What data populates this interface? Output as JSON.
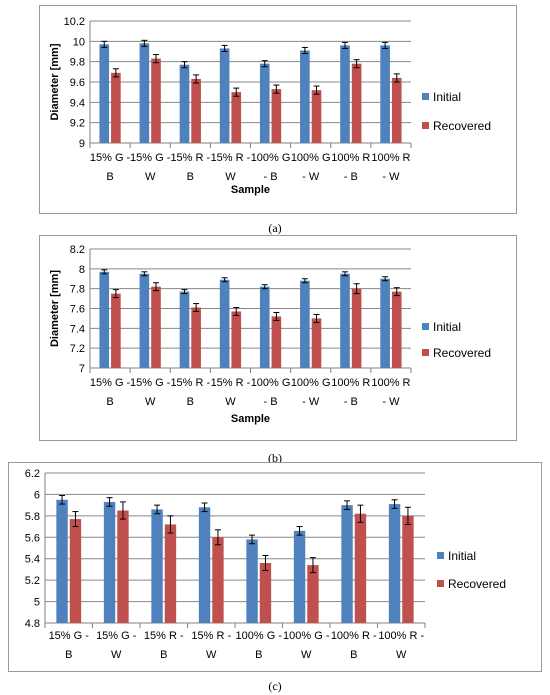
{
  "colors": {
    "initial": "#4F81BD",
    "recovered": "#C0504D",
    "grid": "#878787",
    "axis": "#808080"
  },
  "captions": [
    "(a)",
    "(b)",
    "(c)"
  ],
  "chart_data": [
    {
      "type": "bar",
      "xlabel": "Sample",
      "ylabel": "Diameter [mm]",
      "ylim": [
        9,
        10.2
      ],
      "yticks": [
        "9",
        "9.2",
        "9.4",
        "9.6",
        "9.8",
        "10",
        "10.2"
      ],
      "grid": true,
      "legend_position": "right",
      "categories": [
        [
          "15% G -",
          "B"
        ],
        [
          "15% G -",
          "W"
        ],
        [
          "15% R -",
          "B"
        ],
        [
          "15% R -",
          "W"
        ],
        [
          "100% G",
          "- B"
        ],
        [
          "100% G",
          "- W"
        ],
        [
          "100% R",
          "- B"
        ],
        [
          "100% R",
          "- W"
        ]
      ],
      "series": [
        {
          "name": "Initial",
          "values": [
            9.97,
            9.98,
            9.77,
            9.93,
            9.78,
            9.91,
            9.96,
            9.96
          ],
          "errors": [
            0.03,
            0.03,
            0.03,
            0.03,
            0.03,
            0.03,
            0.03,
            0.03
          ]
        },
        {
          "name": "Recovered",
          "values": [
            9.69,
            9.83,
            9.63,
            9.5,
            9.53,
            9.52,
            9.78,
            9.64
          ],
          "errors": [
            0.04,
            0.04,
            0.04,
            0.04,
            0.04,
            0.04,
            0.04,
            0.04
          ]
        }
      ]
    },
    {
      "type": "bar",
      "xlabel": "Sample",
      "ylabel": "Diameter [mm]",
      "ylim": [
        7,
        8.2
      ],
      "yticks": [
        "7",
        "7.2",
        "7.4",
        "7.6",
        "7.8",
        "8",
        "8.2"
      ],
      "grid": true,
      "legend_position": "right",
      "categories": [
        [
          "15% G -",
          "B"
        ],
        [
          "15% G -",
          "W"
        ],
        [
          "15% R -",
          "B"
        ],
        [
          "15% R -",
          "W"
        ],
        [
          "100% G",
          "- B"
        ],
        [
          "100% G",
          "- W"
        ],
        [
          "100% R",
          "- B"
        ],
        [
          "100% R",
          "- W"
        ]
      ],
      "series": [
        {
          "name": "Initial",
          "values": [
            7.97,
            7.95,
            7.77,
            7.89,
            7.82,
            7.88,
            7.95,
            7.9
          ],
          "errors": [
            0.02,
            0.02,
            0.02,
            0.02,
            0.02,
            0.02,
            0.02,
            0.02
          ]
        },
        {
          "name": "Recovered",
          "values": [
            7.75,
            7.82,
            7.61,
            7.57,
            7.52,
            7.5,
            7.8,
            7.77
          ],
          "errors": [
            0.04,
            0.04,
            0.04,
            0.04,
            0.04,
            0.04,
            0.05,
            0.04
          ]
        }
      ]
    },
    {
      "type": "bar",
      "xlabel": "",
      "ylabel": "",
      "ylim": [
        4.8,
        6.2
      ],
      "yticks": [
        "4.8",
        "5",
        "5.2",
        "5.4",
        "5.6",
        "5.8",
        "6",
        "6.2"
      ],
      "grid": true,
      "legend_position": "right",
      "categories": [
        [
          "15% G -",
          "B"
        ],
        [
          "15% G -",
          "W"
        ],
        [
          "15% R -",
          "B"
        ],
        [
          "15% R -",
          "W"
        ],
        [
          "100% G -",
          "B"
        ],
        [
          "100% G -",
          "W"
        ],
        [
          "100% R -",
          "B"
        ],
        [
          "100% R -",
          "W"
        ]
      ],
      "series": [
        {
          "name": "Initial",
          "values": [
            5.95,
            5.93,
            5.86,
            5.88,
            5.58,
            5.66,
            5.9,
            5.91
          ],
          "errors": [
            0.04,
            0.04,
            0.04,
            0.04,
            0.04,
            0.04,
            0.04,
            0.04
          ]
        },
        {
          "name": "Recovered",
          "values": [
            5.77,
            5.85,
            5.72,
            5.6,
            5.36,
            5.34,
            5.82,
            5.8
          ],
          "errors": [
            0.07,
            0.08,
            0.08,
            0.07,
            0.07,
            0.07,
            0.08,
            0.08
          ]
        }
      ]
    }
  ]
}
